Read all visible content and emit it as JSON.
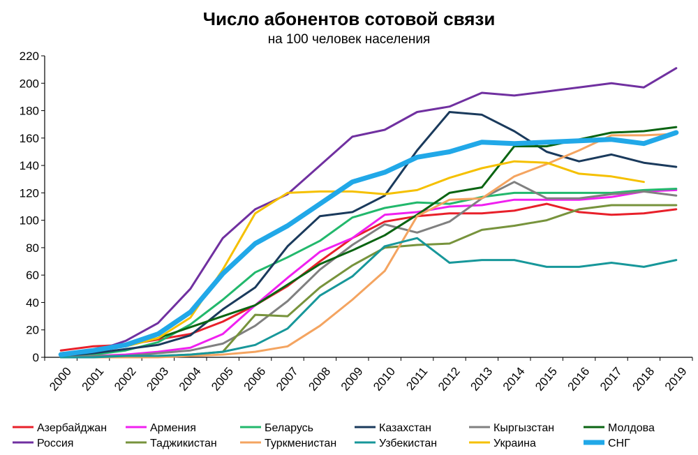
{
  "chart_data": {
    "type": "line",
    "title": "Число абонентов сотовой связи",
    "subtitle": "на 100 человек населения",
    "xlabel": "",
    "ylabel": "",
    "x": [
      "2000",
      "2001",
      "2002",
      "2003",
      "2004",
      "2005",
      "2006",
      "2007",
      "2008",
      "2009",
      "2010",
      "2011",
      "2012",
      "2013",
      "2014",
      "2015",
      "2016",
      "2017",
      "2018",
      "2019"
    ],
    "ylim": [
      0,
      220
    ],
    "yticks": [
      "0",
      "20",
      "40",
      "60",
      "80",
      "100",
      "120",
      "140",
      "160",
      "180",
      "200",
      "220"
    ],
    "grid": false,
    "legend_position": "bottom",
    "series": [
      {
        "name": "Азербайджан",
        "color": "#e8202a",
        "width": 3,
        "values": [
          5,
          8,
          9,
          13,
          17,
          26,
          38,
          52,
          70,
          87,
          99,
          103,
          105,
          105,
          107,
          112,
          106,
          104,
          105,
          108
        ]
      },
      {
        "name": "Армения",
        "color": "#f020f0",
        "width": 3,
        "values": [
          1,
          1,
          2,
          4,
          7,
          17,
          38,
          58,
          77,
          87,
          104,
          106,
          110,
          111,
          115,
          115,
          115,
          117,
          121,
          122
        ]
      },
      {
        "name": "Беларусь",
        "color": "#22b86c",
        "width": 3,
        "values": [
          1,
          2,
          5,
          11,
          24,
          42,
          62,
          73,
          85,
          102,
          109,
          113,
          112,
          117,
          120,
          120,
          120,
          120,
          122,
          123
        ]
      },
      {
        "name": "Казахстан",
        "color": "#1a3a5c",
        "width": 3,
        "values": [
          1,
          3,
          6,
          9,
          16,
          35,
          51,
          81,
          103,
          106,
          118,
          151,
          179,
          177,
          165,
          150,
          143,
          148,
          142,
          139
        ]
      },
      {
        "name": "Кыргызстан",
        "color": "#808080",
        "width": 3,
        "values": [
          0,
          1,
          1,
          3,
          5,
          10,
          23,
          41,
          64,
          82,
          97,
          91,
          99,
          116,
          128,
          116,
          116,
          119,
          121,
          118
        ]
      },
      {
        "name": "Молдова",
        "color": "#0a6412",
        "width": 3,
        "values": [
          3,
          5,
          8,
          14,
          22,
          30,
          38,
          53,
          68,
          78,
          89,
          104,
          120,
          124,
          154,
          154,
          159,
          164,
          165,
          168
        ]
      },
      {
        "name": "Россия",
        "color": "#7030a0",
        "width": 3,
        "values": [
          2,
          4,
          12,
          25,
          50,
          87,
          108,
          119,
          140,
          161,
          166,
          179,
          183,
          193,
          191,
          194,
          197,
          200,
          197,
          211
        ]
      },
      {
        "name": "Таджикистан",
        "color": "#77933c",
        "width": 3,
        "values": [
          0,
          0,
          0,
          1,
          2,
          4,
          31,
          30,
          51,
          67,
          80,
          82,
          83,
          93,
          96,
          100,
          108,
          111,
          111,
          111
        ]
      },
      {
        "name": "Туркменистан",
        "color": "#f4a460",
        "width": 3,
        "values": [
          0,
          0,
          0,
          0,
          1,
          2,
          4,
          8,
          23,
          42,
          63,
          103,
          115,
          116,
          132,
          141,
          151,
          162,
          162,
          163
        ]
      },
      {
        "name": "Узбекистан",
        "color": "#17979a",
        "width": 3,
        "values": [
          0,
          0,
          1,
          1,
          2,
          4,
          9,
          21,
          45,
          59,
          81,
          87,
          69,
          71,
          71,
          66,
          66,
          69,
          66,
          71
        ]
      },
      {
        "name": "Украина",
        "color": "#f5c000",
        "width": 3,
        "values": [
          2,
          5,
          8,
          14,
          29,
          64,
          105,
          120,
          121,
          121,
          119,
          122,
          131,
          138,
          143,
          142,
          134,
          132,
          128,
          null
        ]
      },
      {
        "name": "СНГ",
        "color": "#21a8e8",
        "width": 7,
        "values": [
          2,
          5,
          9,
          17,
          33,
          61,
          83,
          96,
          112,
          128,
          135,
          146,
          150,
          157,
          156,
          157,
          158,
          159,
          156,
          164
        ]
      }
    ]
  }
}
